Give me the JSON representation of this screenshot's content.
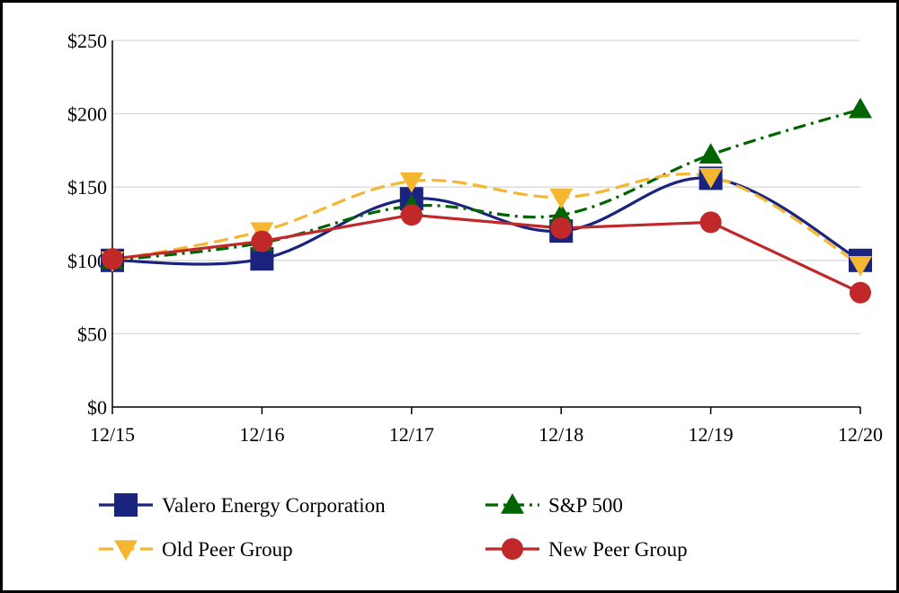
{
  "chart_data": {
    "type": "line",
    "title": "",
    "xlabel": "",
    "ylabel": "",
    "categories": [
      "12/15",
      "12/16",
      "12/17",
      "12/18",
      "12/19",
      "12/20"
    ],
    "ylim": [
      0,
      250
    ],
    "yticks": [
      0,
      50,
      100,
      150,
      200,
      250
    ],
    "ytick_labels": [
      "$0",
      "$50",
      "$100",
      "$150",
      "$200",
      "$250"
    ],
    "grid": "horizontal",
    "legend_position": "bottom",
    "series": [
      {
        "name": "Valero Energy Corporation",
        "values": [
          100,
          101,
          142,
          120,
          156,
          100
        ],
        "color": "#1a237e",
        "dash": "solid",
        "marker": "square",
        "curve": "smooth"
      },
      {
        "name": "S&P 500",
        "values": [
          100,
          112,
          137,
          131,
          172,
          203
        ],
        "color": "#006400",
        "dash": "dashdot",
        "marker": "triangle-up",
        "curve": "smooth"
      },
      {
        "name": "Old Peer Group",
        "values": [
          100,
          120,
          154,
          143,
          157,
          97
        ],
        "color": "#f5b731",
        "dash": "dashed",
        "marker": "triangle-down",
        "curve": "smooth"
      },
      {
        "name": "New Peer Group",
        "values": [
          101,
          113,
          131,
          122,
          126,
          78
        ],
        "color": "#c0282a",
        "dash": "solid",
        "marker": "circle",
        "curve": "straight"
      }
    ]
  }
}
